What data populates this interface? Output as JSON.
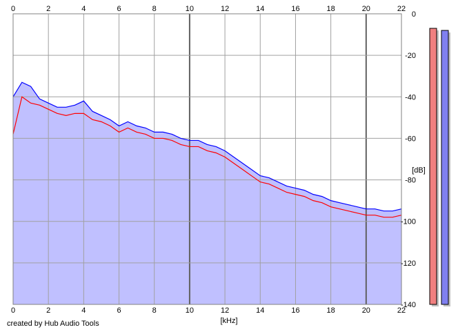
{
  "chart_data": {
    "type": "area",
    "xlabel": "[kHz]",
    "ylabel": "[dB]",
    "xlim": [
      0,
      22
    ],
    "ylim": [
      -140,
      0
    ],
    "x_ticks": [
      0,
      2,
      4,
      6,
      8,
      10,
      12,
      14,
      16,
      18,
      20,
      22
    ],
    "y_ticks": [
      0,
      -20,
      -40,
      -60,
      -80,
      -100,
      -120,
      -140
    ],
    "grid": true,
    "x": [
      0,
      0.5,
      1,
      1.5,
      2,
      2.5,
      3,
      3.5,
      4,
      4.5,
      5,
      5.5,
      6,
      6.5,
      7,
      7.5,
      8,
      8.5,
      9,
      9.5,
      10,
      10.5,
      11,
      11.5,
      12,
      12.5,
      13,
      13.5,
      14,
      14.5,
      15,
      15.5,
      16,
      16.5,
      17,
      17.5,
      18,
      18.5,
      19,
      19.5,
      20,
      20.5,
      21,
      21.5,
      22
    ],
    "series": [
      {
        "color": "#ff0000",
        "values": [
          -58,
          -40,
          -43,
          -44,
          -46,
          -48,
          -49,
          -48,
          -48,
          -51,
          -52,
          -54,
          -57,
          -55,
          -57,
          -58,
          -60,
          -60,
          -61,
          -63,
          -64,
          -64,
          -66,
          -67,
          -69,
          -72,
          -75,
          -78,
          -81,
          -82,
          -84,
          -86,
          -87,
          -88,
          -90,
          -91,
          -93,
          -94,
          -95,
          -96,
          -97,
          -97,
          -98,
          -98,
          -97
        ]
      },
      {
        "color": "#0000ff",
        "values": [
          -40,
          -33,
          -35,
          -41,
          -43,
          -45,
          -45,
          -44,
          -42,
          -47,
          -49,
          -51,
          -54,
          -52,
          -54,
          -55,
          -57,
          -57,
          -58,
          -60,
          -61,
          -61,
          -63,
          -64,
          -66,
          -69,
          -72,
          -75,
          -78,
          -79,
          -81,
          -83,
          -84,
          -85,
          -87,
          -88,
          -90,
          -91,
          -92,
          -93,
          -94,
          -94,
          -95,
          -95,
          -94
        ]
      }
    ],
    "area_fill": "#c0c0ff",
    "level_meters": [
      {
        "channel_color": "#f08080",
        "value": -7
      },
      {
        "channel_color": "#8080f0",
        "value": -8
      }
    ]
  },
  "footer": {
    "credit": "created by Hub Audio Tools"
  }
}
